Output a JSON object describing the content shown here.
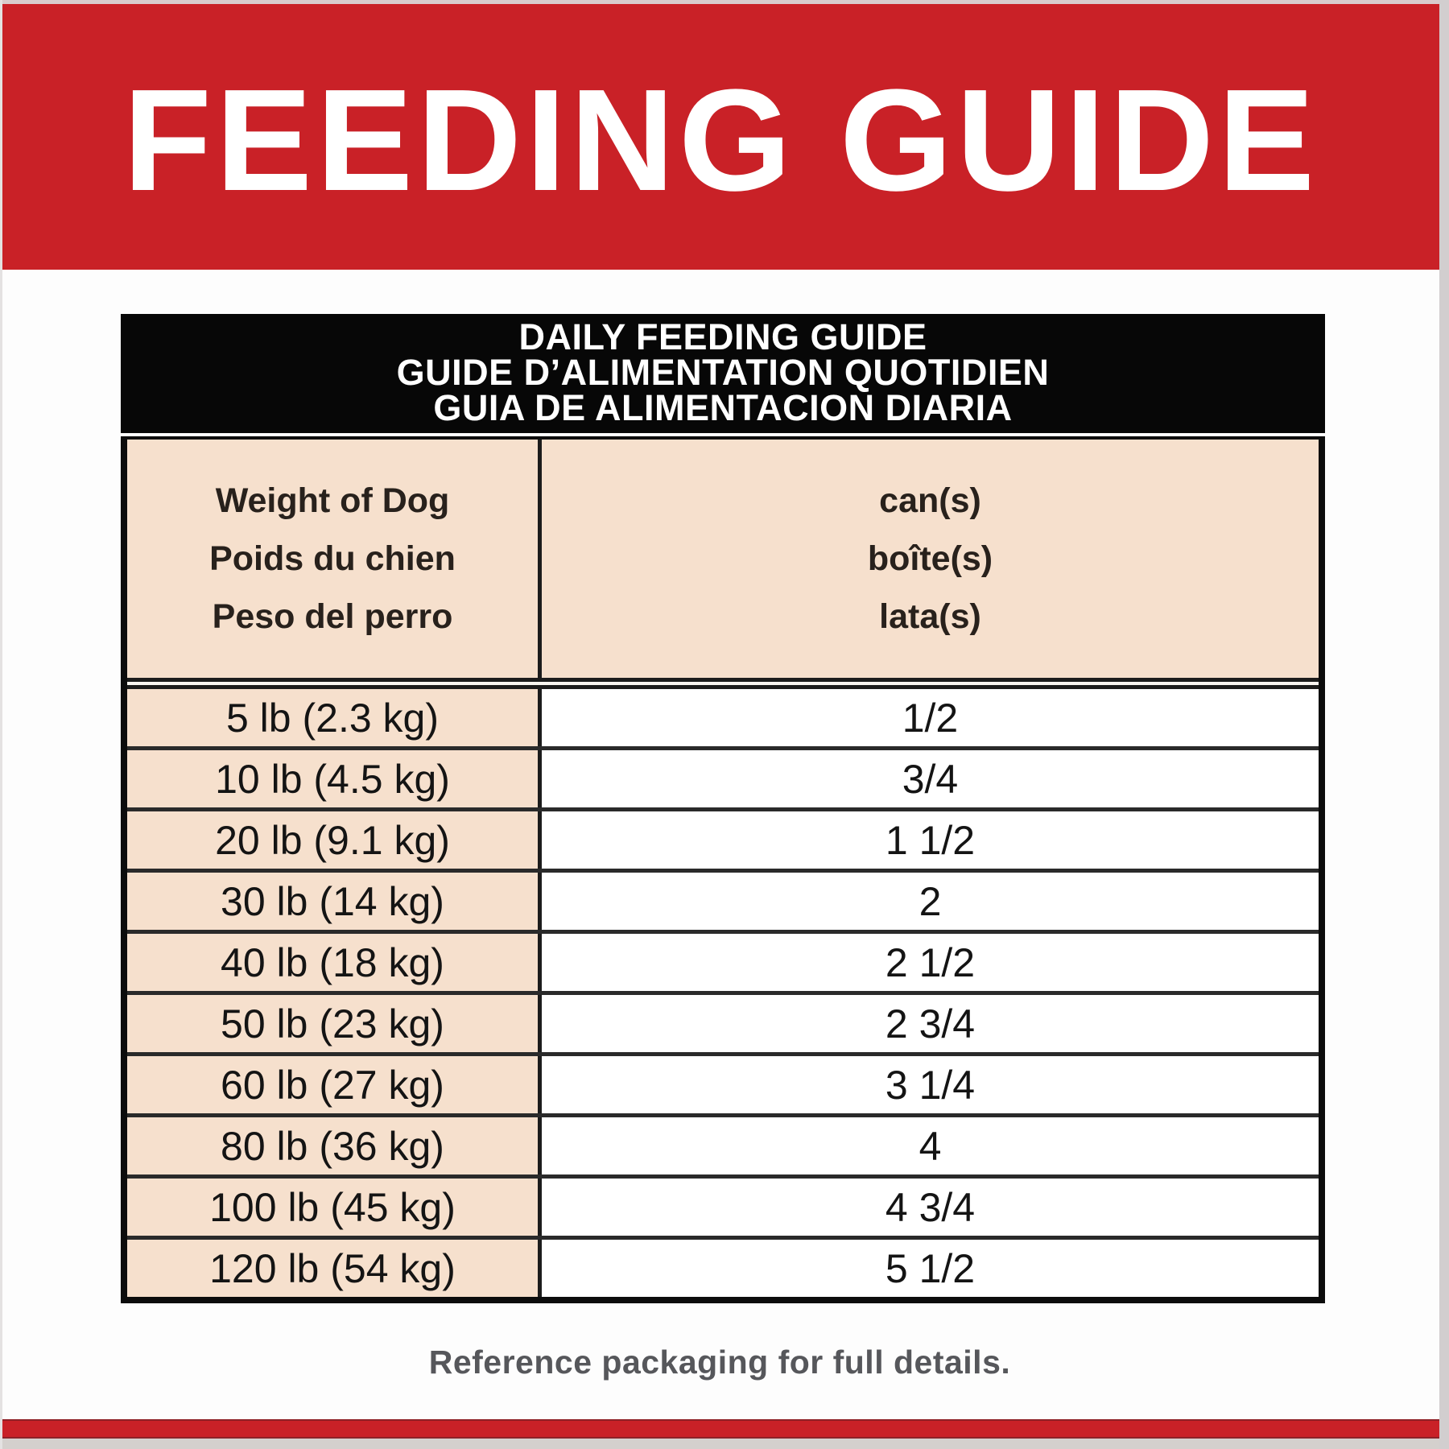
{
  "banner": {
    "title": "FEEDING GUIDE",
    "bg_color": "#c92127",
    "text_color": "#ffffff"
  },
  "table": {
    "title_lines": [
      "DAILY FEEDING GUIDE",
      "GUIDE D’ALIMENTATION QUOTIDIEN",
      "GUIA DE ALIMENTACION DIARIA"
    ],
    "header": {
      "weight": [
        "Weight of Dog",
        "Poids du chien",
        "Peso del perro"
      ],
      "cans": [
        "can(s)",
        "boîte(s)",
        "lata(s)"
      ]
    },
    "rows": [
      {
        "weight": "5 lb (2.3 kg)",
        "cans": "1/2"
      },
      {
        "weight": "10 lb (4.5 kg)",
        "cans": "3/4"
      },
      {
        "weight": "20 lb (9.1 kg)",
        "cans": "1 1/2"
      },
      {
        "weight": "30 lb (14 kg)",
        "cans": "2"
      },
      {
        "weight": "40 lb (18 kg)",
        "cans": "2 1/2"
      },
      {
        "weight": "50 lb (23 kg)",
        "cans": "2 3/4"
      },
      {
        "weight": "60 lb (27 kg)",
        "cans": "3 1/4"
      },
      {
        "weight": "80 lb (36 kg)",
        "cans": "4"
      },
      {
        "weight": "100 lb (45 kg)",
        "cans": "4 3/4"
      },
      {
        "weight": "120 lb (54 kg)",
        "cans": "5 1/2"
      }
    ],
    "colors": {
      "title_bg": "#070707",
      "header_bg": "#f6e0cd",
      "border": "#0c0c0c",
      "text": "#141414"
    }
  },
  "footer": {
    "note": "Reference packaging for full details."
  }
}
